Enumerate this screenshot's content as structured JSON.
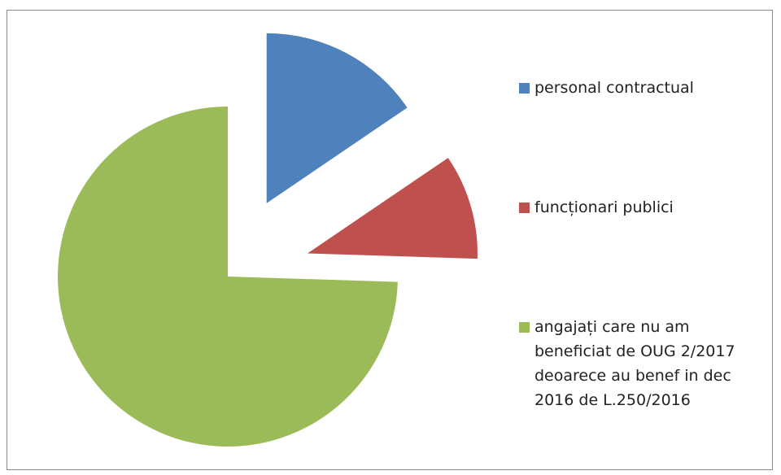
{
  "chart_data": {
    "type": "pie",
    "categories": [
      "personal contractual",
      "funcționari publici",
      "angajați care nu am beneficiat de OUG 2/2017 deoarece au benef in dec 2016 de L.250/2016"
    ],
    "values": [
      15.5,
      10,
      74.5
    ],
    "colors": [
      "#4f81bd",
      "#c0504d",
      "#9bbb59"
    ],
    "legend": "right"
  }
}
